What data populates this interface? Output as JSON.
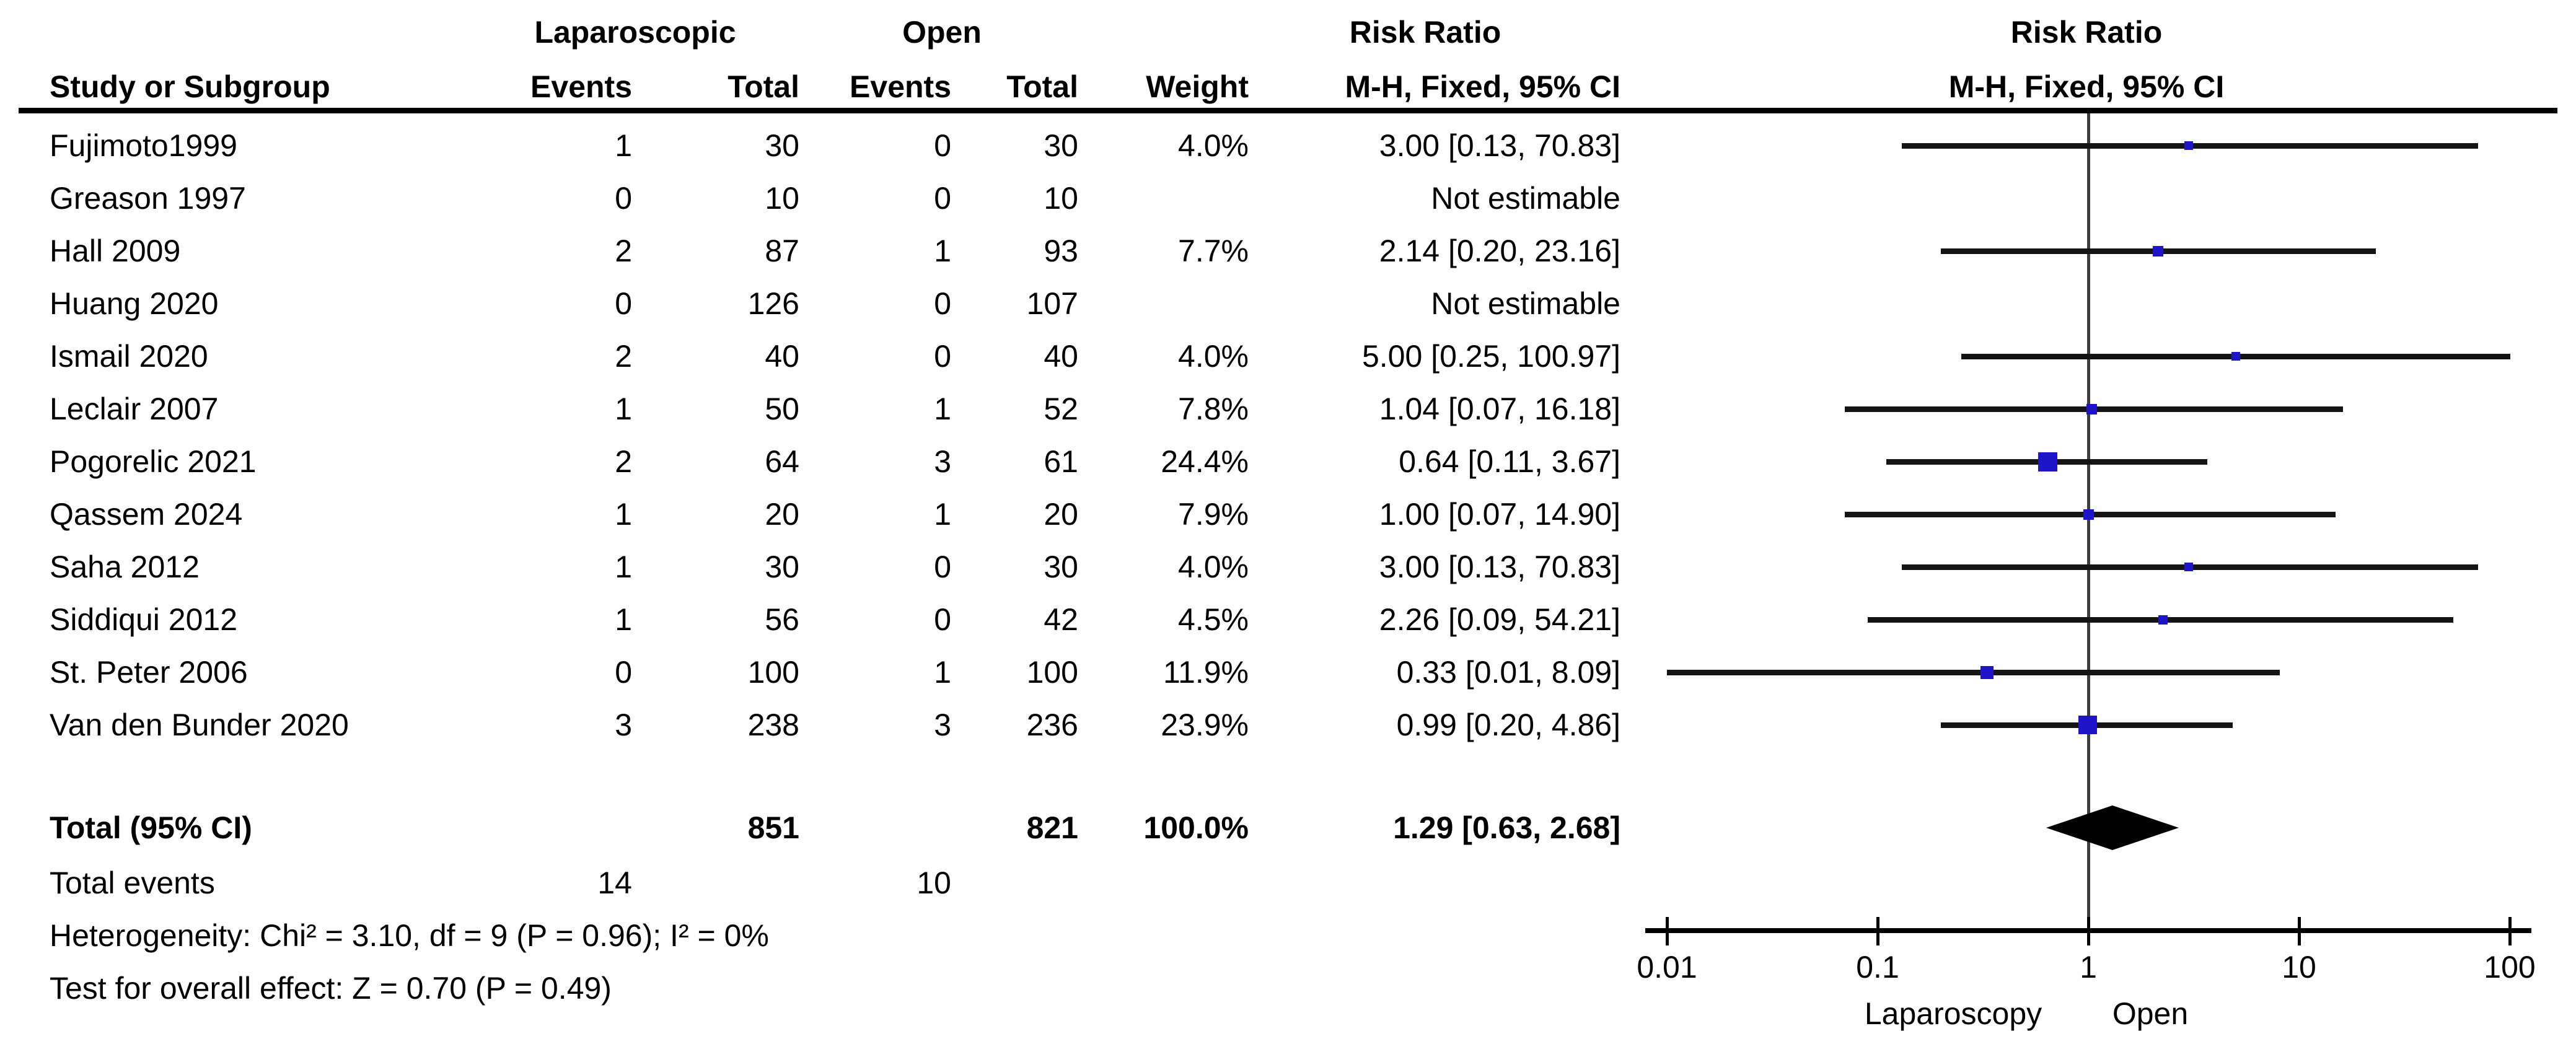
{
  "chart_data": {
    "type": "forest",
    "effect_measure": "Risk Ratio",
    "method": "Mantel-Haenszel, Fixed effects, 95% CI",
    "columns": {
      "group_laparoscopic": "Laparoscopic",
      "group_open": "Open",
      "risk_ratio_left": "Risk Ratio",
      "risk_ratio_plot": "Risk Ratio",
      "study": "Study or Subgroup",
      "lap_events": "Events",
      "lap_total": "Total",
      "open_events": "Events",
      "open_total": "Total",
      "weight": "Weight",
      "mh_ci_left": "M-H, Fixed, 95% CI",
      "mh_ci_plot": "M-H, Fixed, 95% CI"
    },
    "studies": [
      {
        "name": "Fujimoto1999",
        "lap_events": "1",
        "lap_total": "30",
        "open_events": "0",
        "open_total": "30",
        "weight": "4.0%",
        "weight_pct": 4.0,
        "ci_label": "3.00 [0.13, 70.83]",
        "rr": 3.0,
        "ci_low": 0.13,
        "ci_high": 70.83,
        "estimable": true
      },
      {
        "name": "Greason 1997",
        "lap_events": "0",
        "lap_total": "10",
        "open_events": "0",
        "open_total": "10",
        "weight": "",
        "weight_pct": 0,
        "ci_label": "Not estimable",
        "rr": null,
        "ci_low": null,
        "ci_high": null,
        "estimable": false
      },
      {
        "name": "Hall 2009",
        "lap_events": "2",
        "lap_total": "87",
        "open_events": "1",
        "open_total": "93",
        "weight": "7.7%",
        "weight_pct": 7.7,
        "ci_label": "2.14 [0.20, 23.16]",
        "rr": 2.14,
        "ci_low": 0.2,
        "ci_high": 23.16,
        "estimable": true
      },
      {
        "name": "Huang 2020",
        "lap_events": "0",
        "lap_total": "126",
        "open_events": "0",
        "open_total": "107",
        "weight": "",
        "weight_pct": 0,
        "ci_label": "Not estimable",
        "rr": null,
        "ci_low": null,
        "ci_high": null,
        "estimable": false
      },
      {
        "name": "Ismail 2020",
        "lap_events": "2",
        "lap_total": "40",
        "open_events": "0",
        "open_total": "40",
        "weight": "4.0%",
        "weight_pct": 4.0,
        "ci_label": "5.00 [0.25, 100.97]",
        "rr": 5.0,
        "ci_low": 0.25,
        "ci_high": 100.97,
        "estimable": true
      },
      {
        "name": "Leclair 2007",
        "lap_events": "1",
        "lap_total": "50",
        "open_events": "1",
        "open_total": "52",
        "weight": "7.8%",
        "weight_pct": 7.8,
        "ci_label": "1.04 [0.07, 16.18]",
        "rr": 1.04,
        "ci_low": 0.07,
        "ci_high": 16.18,
        "estimable": true
      },
      {
        "name": "Pogorelic 2021",
        "lap_events": "2",
        "lap_total": "64",
        "open_events": "3",
        "open_total": "61",
        "weight": "24.4%",
        "weight_pct": 24.4,
        "ci_label": "0.64 [0.11, 3.67]",
        "rr": 0.64,
        "ci_low": 0.11,
        "ci_high": 3.67,
        "estimable": true
      },
      {
        "name": "Qassem 2024",
        "lap_events": "1",
        "lap_total": "20",
        "open_events": "1",
        "open_total": "20",
        "weight": "7.9%",
        "weight_pct": 7.9,
        "ci_label": "1.00 [0.07, 14.90]",
        "rr": 1.0,
        "ci_low": 0.07,
        "ci_high": 14.9,
        "estimable": true
      },
      {
        "name": "Saha 2012",
        "lap_events": "1",
        "lap_total": "30",
        "open_events": "0",
        "open_total": "30",
        "weight": "4.0%",
        "weight_pct": 4.0,
        "ci_label": "3.00 [0.13, 70.83]",
        "rr": 3.0,
        "ci_low": 0.13,
        "ci_high": 70.83,
        "estimable": true
      },
      {
        "name": "Siddiqui 2012",
        "lap_events": "1",
        "lap_total": "56",
        "open_events": "0",
        "open_total": "42",
        "weight": "4.5%",
        "weight_pct": 4.5,
        "ci_label": "2.26 [0.09, 54.21]",
        "rr": 2.26,
        "ci_low": 0.09,
        "ci_high": 54.21,
        "estimable": true
      },
      {
        "name": "St. Peter 2006",
        "lap_events": "0",
        "lap_total": "100",
        "open_events": "1",
        "open_total": "100",
        "weight": "11.9%",
        "weight_pct": 11.9,
        "ci_label": "0.33 [0.01, 8.09]",
        "rr": 0.33,
        "ci_low": 0.01,
        "ci_high": 8.09,
        "estimable": true
      },
      {
        "name": "Van den Bunder 2020",
        "lap_events": "3",
        "lap_total": "238",
        "open_events": "3",
        "open_total": "236",
        "weight": "23.9%",
        "weight_pct": 23.9,
        "ci_label": "0.99 [0.20, 4.86]",
        "rr": 0.99,
        "ci_low": 0.2,
        "ci_high": 4.86,
        "estimable": true
      }
    ],
    "total": {
      "label": "Total (95% CI)",
      "lap_total": "851",
      "open_total": "821",
      "weight": "100.0%",
      "ci_label": "1.29 [0.63, 2.68]",
      "rr": 1.29,
      "ci_low": 0.63,
      "ci_high": 2.68
    },
    "total_events": {
      "label": "Total events",
      "lap": "14",
      "open": "10"
    },
    "heterogeneity": "Heterogeneity: Chi² = 3.10, df = 9 (P = 0.96); I² = 0%",
    "overall_effect": "Test for overall effect: Z = 0.70 (P = 0.49)",
    "axis": {
      "scale": "log",
      "tick_labels": [
        "0.01",
        "0.1",
        "1",
        "10",
        "100"
      ],
      "tick_values": [
        0.01,
        0.1,
        1,
        10,
        100
      ],
      "xmin": 0.01,
      "xmax": 100,
      "favours_left": "Laparoscopy",
      "favours_right": "Open"
    },
    "colors": {
      "marker_blue": "#1E14C8",
      "diamond": "#000000",
      "ci_line": "#141414",
      "null_line": "#3F3F3F",
      "text": "#000000",
      "background": "#FFFFFF"
    }
  }
}
